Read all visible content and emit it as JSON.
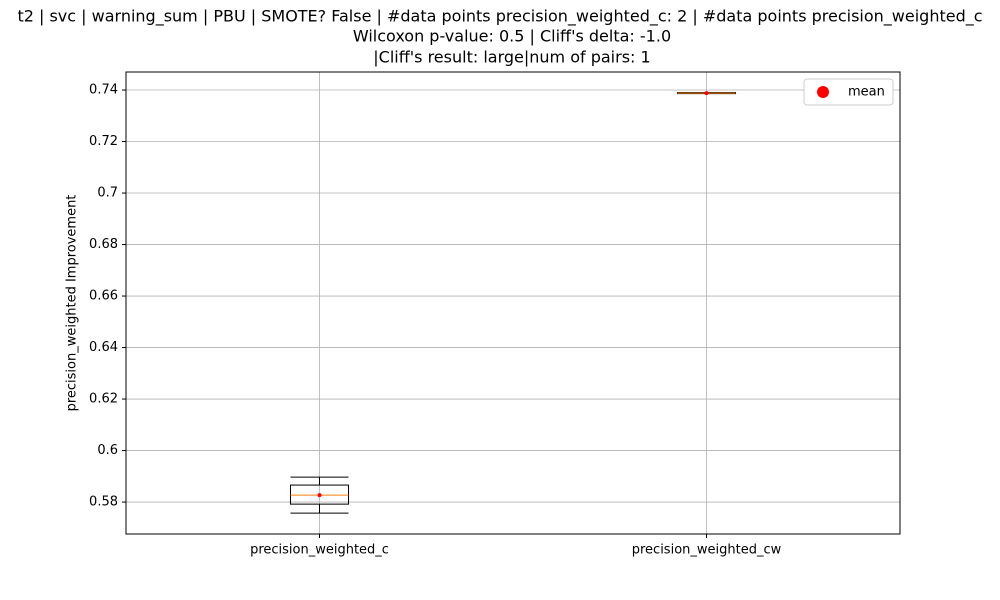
{
  "chart_data": {
    "type": "box",
    "title": [
      "t2 | svc | warning_sum | PBU | SMOTE? False | #data points precision_weighted_c: 2 | #data points precision_weighted_c",
      "Wilcoxon p-value: 0.5 | Cliff's delta: -1.0",
      "|Cliff's result: large|num of pairs: 1"
    ],
    "ylabel": "precision_weighted Improvement",
    "categories": [
      "precision_weighted_c",
      "precision_weighted_cw"
    ],
    "whisker_low": [
      0.5757,
      0.7387
    ],
    "q1": [
      0.5792,
      0.7386
    ],
    "median": [
      0.5827,
      0.7388
    ],
    "q3": [
      0.5866,
      0.739
    ],
    "whisker_high": [
      0.5897,
      0.7389
    ],
    "mean": {
      "name": "mean",
      "color": "#ff0000",
      "values": [
        0.5827,
        0.7388
      ]
    },
    "box_color": "#000000",
    "median_color": "#ff7f0e",
    "ylim": [
      0.5676,
      0.747
    ],
    "yticks": [
      0.58,
      0.6,
      0.62,
      0.64,
      0.66,
      0.68,
      0.7,
      0.72,
      0.74
    ],
    "grid": true,
    "legend": "upper right"
  }
}
